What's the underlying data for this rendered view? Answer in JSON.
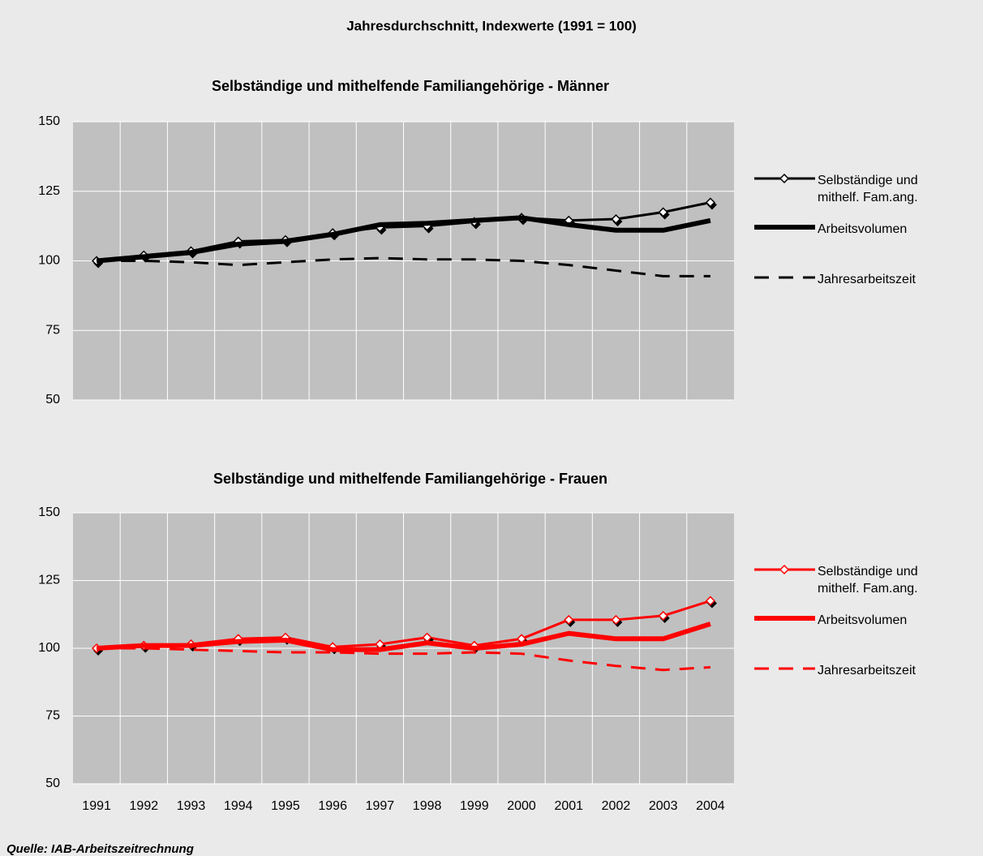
{
  "subtitle": "Jahresdurchschnitt, Indexwerte (1991 = 100)",
  "source": "Quelle: IAB-Arbeitszeitrechnung",
  "chart_data": [
    {
      "type": "line",
      "title": "Selbständige und mithelfende Familiangehörige - Männer",
      "categories": [
        "1991",
        "1992",
        "1993",
        "1994",
        "1995",
        "1996",
        "1997",
        "1998",
        "1999",
        "2000",
        "2001",
        "2002",
        "2003",
        "2004"
      ],
      "x_tick_labels": false,
      "ylim": [
        50,
        150
      ],
      "yticks": [
        50,
        75,
        100,
        125,
        150
      ],
      "grid": true,
      "legend": "right",
      "series": [
        {
          "name": "Selbständige und mithelf. Fam.ang.",
          "color": "#000000",
          "width": 3,
          "marker": "diamond",
          "values": [
            100,
            102,
            103.5,
            107,
            107.5,
            110,
            112,
            112.5,
            114,
            115.5,
            114.5,
            115,
            117.5,
            121
          ]
        },
        {
          "name": "Arbeitsvolumen",
          "color": "#000000",
          "width": 6,
          "values": [
            100,
            101.5,
            103,
            106,
            107,
            109.5,
            113,
            113.5,
            114.5,
            115.5,
            113,
            111,
            111,
            114.5
          ]
        },
        {
          "name": "Jahresarbeitszeit",
          "color": "#000000",
          "width": 3,
          "dash": "18,12",
          "values": [
            100,
            100,
            99.5,
            98.5,
            99.5,
            100.5,
            101,
            100.5,
            100.5,
            100,
            98.5,
            96.5,
            94.5,
            94.5
          ]
        }
      ]
    },
    {
      "type": "line",
      "title": "Selbständige und mithelfende Familiangehörige - Frauen",
      "categories": [
        "1991",
        "1992",
        "1993",
        "1994",
        "1995",
        "1996",
        "1997",
        "1998",
        "1999",
        "2000",
        "2001",
        "2002",
        "2003",
        "2004"
      ],
      "x_tick_labels": true,
      "ylim": [
        50,
        150
      ],
      "yticks": [
        50,
        75,
        100,
        125,
        150
      ],
      "grid": true,
      "legend": "right",
      "series": [
        {
          "name": "Selbständige und mithelf. Fam.ang.",
          "color": "#ff0000",
          "width": 3,
          "marker": "diamond",
          "values": [
            100,
            101,
            101.5,
            103.5,
            104,
            100.5,
            101.5,
            104,
            101,
            103.5,
            110.5,
            110.5,
            112,
            117.5
          ]
        },
        {
          "name": "Arbeitsvolumen",
          "color": "#ff0000",
          "width": 6,
          "values": [
            100,
            101,
            101,
            102.5,
            103,
            99.5,
            99.5,
            102,
            100,
            101.5,
            105.5,
            103.5,
            103.5,
            109
          ]
        },
        {
          "name": "Jahresarbeitszeit",
          "color": "#ff0000",
          "width": 3,
          "dash": "18,12",
          "values": [
            100,
            100,
            99.5,
            99,
            98.5,
            98.5,
            98,
            98,
            98.5,
            98,
            95.5,
            93.5,
            92,
            93
          ]
        }
      ]
    }
  ]
}
